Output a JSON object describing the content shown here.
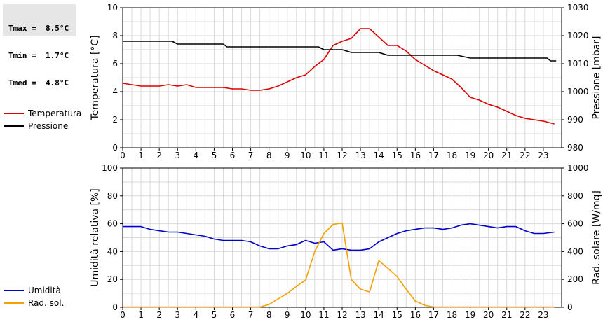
{
  "stats": {
    "tmax": "Tmax =  8.5°C",
    "tmin": "Tmin =  1.7°C",
    "tmed": "Tmed =  4.8°C"
  },
  "colors": {
    "temperature": "#dd0000",
    "pressure": "#000000",
    "humidity": "#0000cc",
    "radiation": "#f5a000",
    "grid": "#d9d9d9"
  },
  "legend_top": [
    {
      "label": "Temperatura",
      "color": "#dd0000"
    },
    {
      "label": "Pressione",
      "color": "#000000"
    }
  ],
  "legend_bottom": [
    {
      "label": "Umidità",
      "color": "#0000cc"
    },
    {
      "label": "Rad. sol.",
      "color": "#f5a000"
    }
  ],
  "chart_data": [
    {
      "type": "line",
      "xlim": [
        0,
        24
      ],
      "x_ticks": [
        0,
        1,
        2,
        3,
        4,
        5,
        6,
        7,
        8,
        9,
        10,
        11,
        12,
        13,
        14,
        15,
        16,
        17,
        18,
        19,
        20,
        21,
        22,
        23
      ],
      "ylabel_left": "Temperatura [°C]",
      "ylim_left": [
        0,
        10
      ],
      "yticks_left": [
        0,
        2,
        4,
        6,
        8,
        10
      ],
      "ylabel_right": "Pressione [mbar]",
      "ylim_right": [
        980,
        1030
      ],
      "yticks_right": [
        980,
        990,
        1000,
        1010,
        1020,
        1030
      ],
      "grid": true,
      "series": [
        {
          "name": "Temperatura",
          "axis": "left",
          "color": "#dd0000",
          "points": [
            [
              0,
              4.6
            ],
            [
              0.5,
              4.5
            ],
            [
              1,
              4.4
            ],
            [
              1.5,
              4.4
            ],
            [
              2,
              4.4
            ],
            [
              2.5,
              4.5
            ],
            [
              3,
              4.4
            ],
            [
              3.5,
              4.5
            ],
            [
              4,
              4.3
            ],
            [
              4.5,
              4.3
            ],
            [
              5,
              4.3
            ],
            [
              5.5,
              4.3
            ],
            [
              6,
              4.2
            ],
            [
              6.5,
              4.2
            ],
            [
              7,
              4.1
            ],
            [
              7.5,
              4.1
            ],
            [
              8,
              4.2
            ],
            [
              8.5,
              4.4
            ],
            [
              9,
              4.7
            ],
            [
              9.5,
              5.0
            ],
            [
              10,
              5.2
            ],
            [
              10.5,
              5.8
            ],
            [
              11,
              6.3
            ],
            [
              11.5,
              7.3
            ],
            [
              12,
              7.6
            ],
            [
              12.5,
              7.8
            ],
            [
              13,
              8.5
            ],
            [
              13.5,
              8.5
            ],
            [
              14,
              7.9
            ],
            [
              14.5,
              7.3
            ],
            [
              15,
              7.3
            ],
            [
              15.5,
              6.9
            ],
            [
              16,
              6.3
            ],
            [
              16.5,
              5.9
            ],
            [
              17,
              5.5
            ],
            [
              17.5,
              5.2
            ],
            [
              18,
              4.9
            ],
            [
              18.5,
              4.3
            ],
            [
              19,
              3.6
            ],
            [
              19.5,
              3.4
            ],
            [
              20,
              3.1
            ],
            [
              20.5,
              2.9
            ],
            [
              21,
              2.6
            ],
            [
              21.5,
              2.3
            ],
            [
              22,
              2.1
            ],
            [
              22.5,
              2.0
            ],
            [
              23,
              1.9
            ],
            [
              23.6,
              1.7
            ]
          ]
        },
        {
          "name": "Pressione",
          "axis": "right",
          "color": "#000000",
          "points": [
            [
              0,
              1018
            ],
            [
              2.7,
              1018
            ],
            [
              3,
              1017
            ],
            [
              5.5,
              1017
            ],
            [
              5.7,
              1016
            ],
            [
              10.7,
              1016
            ],
            [
              11,
              1015
            ],
            [
              12,
              1015
            ],
            [
              12.5,
              1014
            ],
            [
              14,
              1014
            ],
            [
              14.5,
              1013
            ],
            [
              18.3,
              1013
            ],
            [
              19,
              1012
            ],
            [
              23.2,
              1012
            ],
            [
              23.4,
              1011
            ],
            [
              23.7,
              1011
            ]
          ]
        }
      ]
    },
    {
      "type": "line",
      "xlim": [
        0,
        24
      ],
      "x_ticks": [
        0,
        1,
        2,
        3,
        4,
        5,
        6,
        7,
        8,
        9,
        10,
        11,
        12,
        13,
        14,
        15,
        16,
        17,
        18,
        19,
        20,
        21,
        22,
        23
      ],
      "ylabel_left": "Umidità relativa [%]",
      "ylim_left": [
        0,
        100
      ],
      "yticks_left": [
        0,
        20,
        40,
        60,
        80,
        100
      ],
      "ylabel_right": "Rad. solare [W/mq]",
      "ylim_right": [
        0,
        1000
      ],
      "yticks_right": [
        0,
        200,
        400,
        600,
        800,
        1000
      ],
      "grid": true,
      "series": [
        {
          "name": "Umidità",
          "axis": "left",
          "color": "#0000cc",
          "points": [
            [
              0,
              58
            ],
            [
              1,
              58
            ],
            [
              1.5,
              56
            ],
            [
              2,
              55
            ],
            [
              2.5,
              54
            ],
            [
              3,
              54
            ],
            [
              3.5,
              53
            ],
            [
              4,
              52
            ],
            [
              4.5,
              51
            ],
            [
              5,
              49
            ],
            [
              5.5,
              48
            ],
            [
              6,
              48
            ],
            [
              6.5,
              48
            ],
            [
              7,
              47
            ],
            [
              7.5,
              44
            ],
            [
              8,
              42
            ],
            [
              8.5,
              42
            ],
            [
              9,
              44
            ],
            [
              9.5,
              45
            ],
            [
              10,
              48
            ],
            [
              10.5,
              46
            ],
            [
              11,
              47
            ],
            [
              11.5,
              41
            ],
            [
              12,
              42
            ],
            [
              12.5,
              41
            ],
            [
              13,
              41
            ],
            [
              13.5,
              42
            ],
            [
              14,
              47
            ],
            [
              14.5,
              50
            ],
            [
              15,
              53
            ],
            [
              15.5,
              55
            ],
            [
              16,
              56
            ],
            [
              16.5,
              57
            ],
            [
              17,
              57
            ],
            [
              17.5,
              56
            ],
            [
              18,
              57
            ],
            [
              18.5,
              59
            ],
            [
              19,
              60
            ],
            [
              19.5,
              59
            ],
            [
              20,
              58
            ],
            [
              20.5,
              57
            ],
            [
              21,
              58
            ],
            [
              21.5,
              58
            ],
            [
              22,
              55
            ],
            [
              22.5,
              53
            ],
            [
              23,
              53
            ],
            [
              23.6,
              54
            ]
          ]
        },
        {
          "name": "Rad. sol.",
          "axis": "right",
          "color": "#f5a000",
          "points": [
            [
              0,
              2
            ],
            [
              7.5,
              2
            ],
            [
              8,
              20
            ],
            [
              8.5,
              60
            ],
            [
              9,
              100
            ],
            [
              9.5,
              150
            ],
            [
              10,
              195
            ],
            [
              10.5,
              400
            ],
            [
              11,
              530
            ],
            [
              11.5,
              595
            ],
            [
              12,
              605
            ],
            [
              12.5,
              200
            ],
            [
              13,
              130
            ],
            [
              13.5,
              110
            ],
            [
              14,
              335
            ],
            [
              14.5,
              280
            ],
            [
              15,
              220
            ],
            [
              15.5,
              130
            ],
            [
              16,
              45
            ],
            [
              16.5,
              15
            ],
            [
              17,
              2
            ],
            [
              23.6,
              2
            ]
          ]
        }
      ]
    }
  ]
}
